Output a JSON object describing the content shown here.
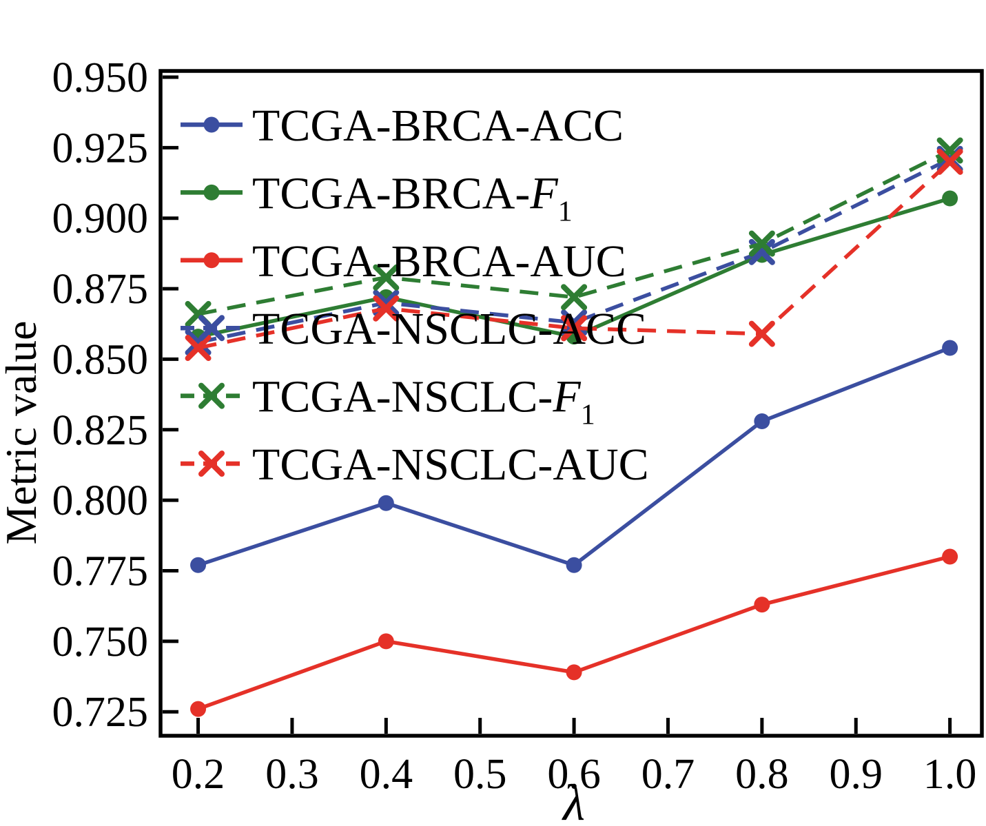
{
  "chart_data": {
    "type": "line",
    "title": "",
    "xlabel": "λ",
    "ylabel": "Metric value",
    "grid": false,
    "legend_position": "upper-left-inside",
    "x": [
      0.2,
      0.4,
      0.6,
      0.8,
      1.0
    ],
    "xlim": [
      0.16,
      1.034
    ],
    "ylim": [
      0.7165,
      0.9522
    ],
    "x_ticks": [
      0.2,
      0.3,
      0.4,
      0.5,
      0.6,
      0.7,
      0.8,
      0.9,
      1.0
    ],
    "x_tick_labels": [
      "0.2",
      "0.3",
      "0.4",
      "0.5",
      "0.6",
      "0.7",
      "0.8",
      "0.9",
      "1.0"
    ],
    "y_ticks": [
      0.725,
      0.75,
      0.775,
      0.8,
      0.825,
      0.85,
      0.875,
      0.9,
      0.925,
      0.95
    ],
    "y_tick_labels": [
      "0.725",
      "0.750",
      "0.775",
      "0.800",
      "0.825",
      "0.850",
      "0.875",
      "0.900",
      "0.925",
      "0.950"
    ],
    "series": [
      {
        "name": "TCGA-BRCA-ACC",
        "color": "#3B4EA0",
        "style": "solid",
        "marker": "circle",
        "values": [
          0.777,
          0.799,
          0.777,
          0.828,
          0.854
        ]
      },
      {
        "name": "TCGA-BRCA-F1",
        "color": "#2E7D33",
        "style": "solid",
        "marker": "circle",
        "values": [
          0.858,
          0.872,
          0.858,
          0.887,
          0.907
        ]
      },
      {
        "name": "TCGA-BRCA-AUC",
        "color": "#E53128",
        "style": "solid",
        "marker": "circle",
        "values": [
          0.726,
          0.75,
          0.739,
          0.763,
          0.78
        ]
      },
      {
        "name": "TCGA-NSCLC-ACC",
        "color": "#3B4EA0",
        "style": "dashed",
        "marker": "x",
        "values": [
          0.856,
          0.87,
          0.863,
          0.888,
          0.921
        ]
      },
      {
        "name": "TCGA-NSCLC-F1",
        "color": "#2E7D33",
        "style": "dashed",
        "marker": "x",
        "values": [
          0.866,
          0.879,
          0.872,
          0.891,
          0.924
        ]
      },
      {
        "name": "TCGA-NSCLC-AUC",
        "color": "#E53128",
        "style": "dashed",
        "marker": "x",
        "values": [
          0.854,
          0.868,
          0.861,
          0.859,
          0.92
        ]
      }
    ],
    "colors": {
      "blue": "#3B4EA0",
      "green": "#2E7D33",
      "red": "#E53128",
      "axis": "#000000"
    }
  }
}
